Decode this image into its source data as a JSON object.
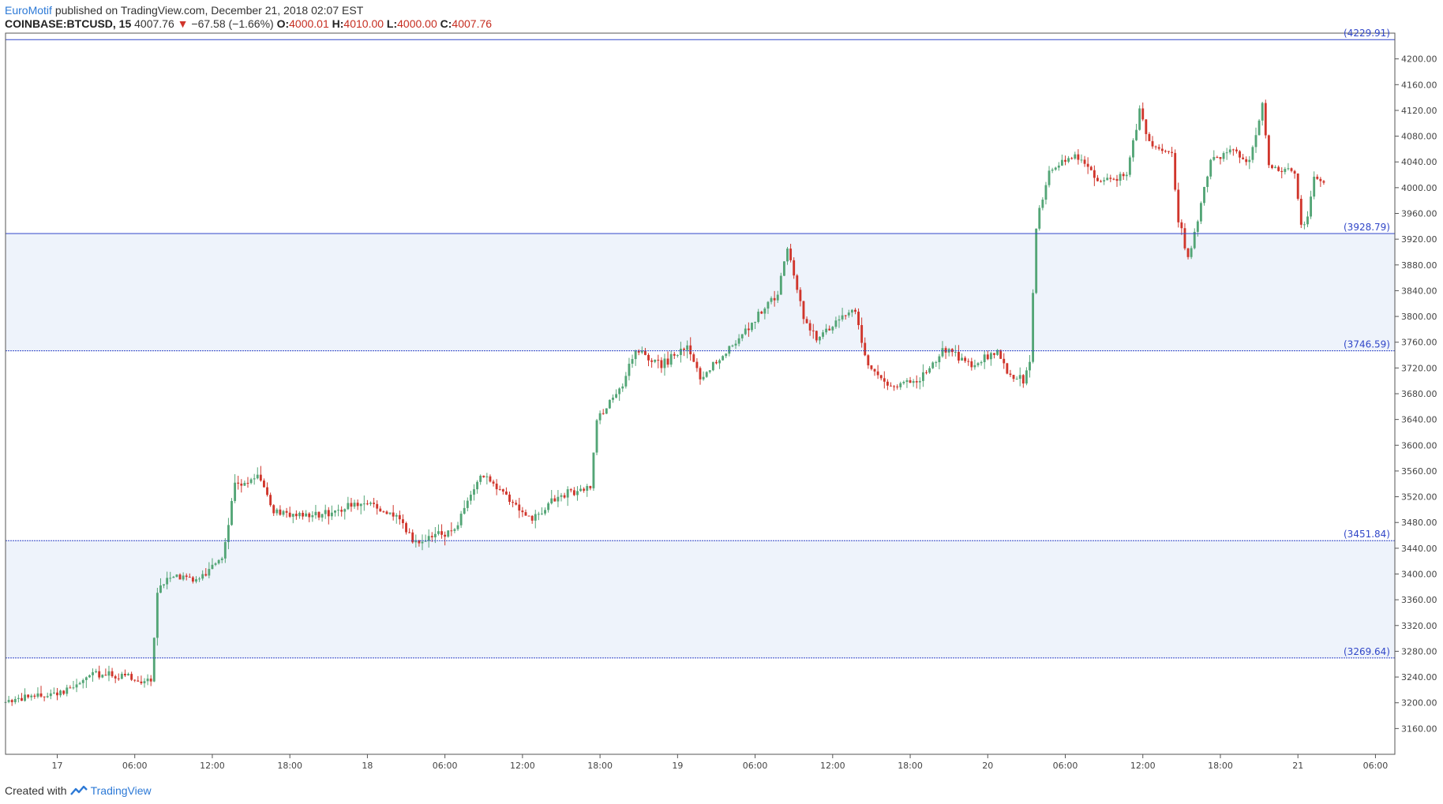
{
  "header": {
    "author": "EuroMotif",
    "published_text": "published on TradingView.com, December 21, 2018 02:07 EST",
    "symbol": "COINBASE:BTCUSD, 15",
    "last": "4007.76",
    "change_arrow": "▼",
    "change": "−67.58 (−1.66%)",
    "o_label": "O:",
    "o_value": "4000.01",
    "h_label": "H:",
    "h_value": "4010.00",
    "l_label": "L:",
    "l_value": "4000.00",
    "c_label": "C:",
    "c_value": "4007.76"
  },
  "footer": {
    "created_with": "Created with",
    "brand": "TradingView"
  },
  "colors": {
    "up": "#53a576",
    "down": "#d0352b",
    "level_line": "#3046c8",
    "zone_fill": "#eef3fb",
    "brand": "#2c79d6"
  },
  "chart_data": {
    "type": "candlestick",
    "symbol": "COINBASE:BTCUSD",
    "interval": "15",
    "ylim": [
      3120,
      4240
    ],
    "yticks": [
      3160,
      3200,
      3240,
      3280,
      3320,
      3360,
      3400,
      3440,
      3480,
      3520,
      3560,
      3600,
      3640,
      3680,
      3720,
      3760,
      3800,
      3840,
      3880,
      3920,
      3960,
      4000,
      4040,
      4080,
      4120,
      4160,
      4200
    ],
    "xticks": [
      "17",
      "06:00",
      "12:00",
      "18:00",
      "18",
      "06:00",
      "12:00",
      "18:00",
      "19",
      "06:00",
      "12:00",
      "18:00",
      "20",
      "06:00",
      "12:00",
      "18:00",
      "21",
      "06:00"
    ],
    "x_range_hours": [
      "2018-12-16 20:00",
      "2018-12-21 07:30"
    ],
    "levels": [
      {
        "value": 4229.91,
        "label": "(4229.91)"
      },
      {
        "value": 3928.79,
        "label": "(3928.79)"
      },
      {
        "value": 3746.59,
        "label": "(3746.59)"
      },
      {
        "value": 3451.84,
        "label": "(3451.84)"
      },
      {
        "value": 3269.64,
        "label": "(3269.64)"
      }
    ],
    "zones": [
      [
        3746.59,
        3928.79
      ],
      [
        3269.64,
        3451.84
      ]
    ],
    "price_path": [
      [
        "2018-12-16 20:00",
        3200
      ],
      [
        "2018-12-17 01:00",
        3218
      ],
      [
        "2018-12-17 03:00",
        3245
      ],
      [
        "2018-12-17 07:30",
        3235
      ],
      [
        "2018-12-17 08:00",
        3370
      ],
      [
        "2018-12-17 09:00",
        3400
      ],
      [
        "2018-12-17 11:00",
        3390
      ],
      [
        "2018-12-17 13:00",
        3425
      ],
      [
        "2018-12-17 14:00",
        3540
      ],
      [
        "2018-12-17 16:00",
        3550
      ],
      [
        "2018-12-17 17:00",
        3495
      ],
      [
        "2018-12-17 20:00",
        3490
      ],
      [
        "2018-12-18 00:00",
        3512
      ],
      [
        "2018-12-18 02:30",
        3488
      ],
      [
        "2018-12-18 04:00",
        3448
      ],
      [
        "2018-12-18 07:00",
        3470
      ],
      [
        "2018-12-18 09:00",
        3555
      ],
      [
        "2018-12-18 11:00",
        3520
      ],
      [
        "2018-12-18 13:00",
        3485
      ],
      [
        "2018-12-18 15:00",
        3520
      ],
      [
        "2018-12-18 17:30",
        3535
      ],
      [
        "2018-12-18 18:00",
        3640
      ],
      [
        "2018-12-18 20:00",
        3690
      ],
      [
        "2018-12-18 21:00",
        3750
      ],
      [
        "2018-12-18 23:00",
        3725
      ],
      [
        "2018-12-19 01:00",
        3750
      ],
      [
        "2018-12-19 02:00",
        3705
      ],
      [
        "2018-12-19 04:00",
        3745
      ],
      [
        "2018-12-19 06:00",
        3790
      ],
      [
        "2018-12-19 08:00",
        3835
      ],
      [
        "2018-12-19 08:45",
        3910
      ],
      [
        "2018-12-19 10:00",
        3800
      ],
      [
        "2018-12-19 11:00",
        3765
      ],
      [
        "2018-12-19 13:00",
        3800
      ],
      [
        "2018-12-19 14:00",
        3810
      ],
      [
        "2018-12-19 15:00",
        3720
      ],
      [
        "2018-12-19 17:00",
        3690
      ],
      [
        "2018-12-19 19:00",
        3705
      ],
      [
        "2018-12-19 21:00",
        3750
      ],
      [
        "2018-12-19 23:00",
        3725
      ],
      [
        "2018-12-20 01:00",
        3745
      ],
      [
        "2018-12-20 02:00",
        3705
      ],
      [
        "2018-12-20 03:00",
        3700
      ],
      [
        "2018-12-20 03:30",
        3730
      ],
      [
        "2018-12-20 03:45",
        3840
      ],
      [
        "2018-12-20 04:00",
        3940
      ],
      [
        "2018-12-20 05:00",
        4030
      ],
      [
        "2018-12-20 07:00",
        4050
      ],
      [
        "2018-12-20 09:00",
        4010
      ],
      [
        "2018-12-20 11:00",
        4020
      ],
      [
        "2018-12-20 12:00",
        4120
      ],
      [
        "2018-12-20 13:00",
        4060
      ],
      [
        "2018-12-20 14:30",
        4050
      ],
      [
        "2018-12-20 15:00",
        3950
      ],
      [
        "2018-12-20 15:45",
        3890
      ],
      [
        "2018-12-20 16:30",
        3950
      ],
      [
        "2018-12-20 17:30",
        4040
      ],
      [
        "2018-12-20 19:00",
        4060
      ],
      [
        "2018-12-20 20:30",
        4040
      ],
      [
        "2018-12-20 21:30",
        4130
      ],
      [
        "2018-12-20 22:00",
        4030
      ],
      [
        "2018-12-20 23:00",
        4030
      ],
      [
        "2018-12-21 00:00",
        4020
      ],
      [
        "2018-12-21 00:30",
        3940
      ],
      [
        "2018-12-21 01:00",
        3950
      ],
      [
        "2018-12-21 01:30",
        4020
      ],
      [
        "2018-12-21 02:00",
        4007.76
      ]
    ]
  }
}
